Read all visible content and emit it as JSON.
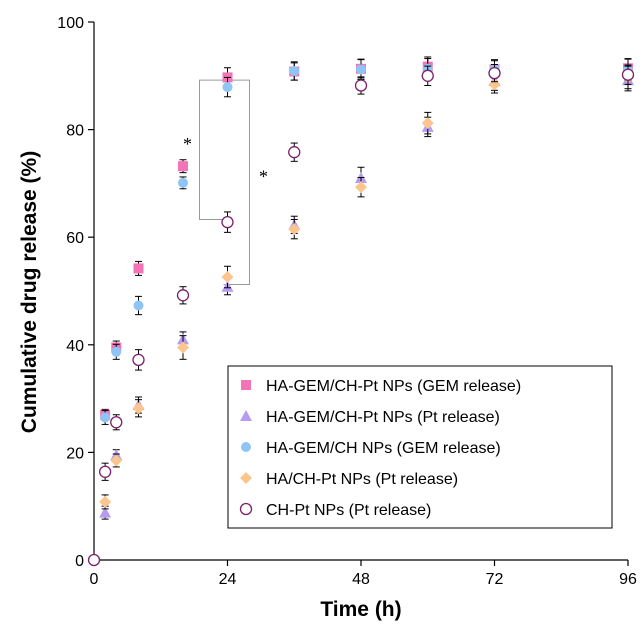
{
  "chart_data": {
    "type": "scatter",
    "title": "",
    "xlabel": "Time (h)",
    "ylabel": "Cumulative drug release (%)",
    "xlim": [
      0,
      96
    ],
    "ylim": [
      0,
      100
    ],
    "xticks": [
      0,
      24,
      48,
      72,
      96
    ],
    "yticks": [
      0,
      20,
      40,
      60,
      80,
      100
    ],
    "grid": false,
    "legend_position": "bottom-right",
    "series": [
      {
        "name": "HA-GEM/CH-Pt NPs (GEM release)",
        "marker": "square",
        "color": "#f472b6",
        "filled": true,
        "x": [
          2,
          4,
          8,
          16,
          24,
          36,
          48,
          60,
          72,
          96
        ],
        "y": [
          27,
          39.5,
          54.2,
          73.2,
          89.7,
          90.8,
          91.3,
          91.7,
          91.2,
          91.4
        ],
        "err": [
          1.0,
          1.2,
          1.3,
          1.2,
          1.8,
          1.6,
          1.7,
          1.8,
          1.6,
          1.7
        ]
      },
      {
        "name": "HA-GEM/CH-Pt NPs (Pt release)",
        "marker": "triangle",
        "color": "#b59cf0",
        "filled": true,
        "x": [
          2,
          4,
          8,
          16,
          24,
          36,
          48,
          60,
          72,
          96
        ],
        "y": [
          8.8,
          19.5,
          28.8,
          41.0,
          50.8,
          62.3,
          71.0,
          80.5,
          89.0,
          89.2
        ],
        "err": [
          1.2,
          1.0,
          1.5,
          1.4,
          1.5,
          1.6,
          2.0,
          1.8,
          1.7,
          2.0
        ]
      },
      {
        "name": "HA-GEM/CH NPs (GEM release)",
        "marker": "circle",
        "color": "#8ec5f5",
        "filled": true,
        "x": [
          2,
          4,
          8,
          16,
          24,
          36,
          48,
          60,
          72,
          96
        ],
        "y": [
          26.5,
          38.7,
          47.3,
          70.1,
          87.9,
          90.9,
          91.2,
          91.3,
          91.3,
          91.2
        ],
        "err": [
          1.3,
          1.4,
          1.7,
          1.1,
          1.8,
          1.7,
          1.9,
          1.9,
          1.7,
          2.0
        ]
      },
      {
        "name": "HA/CH-Pt NPs (Pt release)",
        "marker": "diamond",
        "color": "#fcc58e",
        "filled": true,
        "x": [
          2,
          4,
          8,
          16,
          24,
          36,
          48,
          60,
          72,
          96
        ],
        "y": [
          10.8,
          18.5,
          28.2,
          39.5,
          52.6,
          61.5,
          69.3,
          81.2,
          88.4,
          89.7
        ],
        "err": [
          1.3,
          1.2,
          1.6,
          2.2,
          2.0,
          1.8,
          1.8,
          2.0,
          1.6,
          2.1
        ]
      },
      {
        "name": "CH-Pt NPs (Pt release)",
        "marker": "circle",
        "color": "#7b1f6a",
        "filled": false,
        "x": [
          0,
          2,
          4,
          8,
          16,
          24,
          36,
          48,
          60,
          72,
          96
        ],
        "y": [
          0,
          16.4,
          25.6,
          37.2,
          49.2,
          62.8,
          75.8,
          88.2,
          90.0,
          90.5,
          90.2
        ],
        "err": [
          0,
          1.6,
          1.4,
          1.9,
          1.6,
          1.9,
          1.7,
          1.6,
          1.8,
          1.6,
          1.8
        ]
      }
    ],
    "annotations": [
      {
        "text": "*",
        "bracket_x": 24,
        "bracket_y": [
          63.3,
          89.2
        ],
        "side": "left"
      },
      {
        "text": "*",
        "bracket_x": 24,
        "bracket_y": [
          51.2,
          89.2
        ],
        "side": "right"
      }
    ]
  }
}
